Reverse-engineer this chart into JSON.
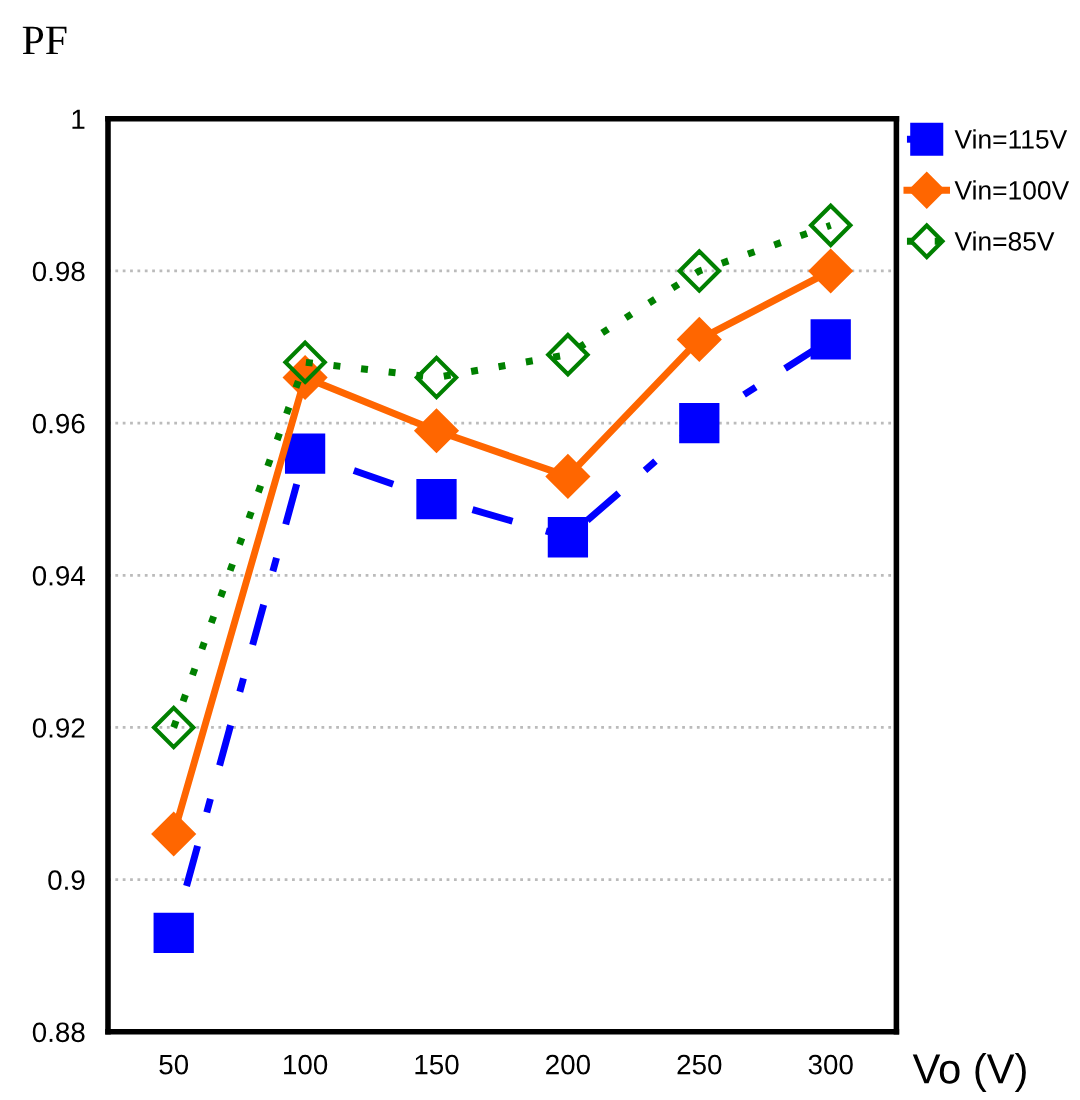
{
  "chart_data": {
    "type": "line",
    "xlabel": "Vo (V)",
    "ylabel": "PF",
    "categories": [
      "50",
      "100",
      "150",
      "200",
      "250",
      "300"
    ],
    "series": [
      {
        "name": "Vin=115V",
        "color": "#0000ff",
        "marker": "square",
        "line_style": "dashed",
        "values": [
          0.893,
          0.956,
          0.95,
          0.945,
          0.96,
          0.971
        ]
      },
      {
        "name": "Vin=100V",
        "color": "#ff6600",
        "marker": "diamond",
        "line_style": "solid",
        "values": [
          0.906,
          0.966,
          0.959,
          0.953,
          0.971,
          0.98
        ]
      },
      {
        "name": "Vin=85V",
        "color": "#008000",
        "marker": "diamond",
        "line_style": "dotted",
        "values": [
          0.92,
          0.968,
          0.966,
          0.969,
          0.98,
          0.986
        ]
      }
    ],
    "ylim": [
      0.88,
      1
    ],
    "yticks": [
      0.88,
      0.9,
      0.92,
      0.94,
      0.96,
      0.98,
      1
    ],
    "grid": "y",
    "legend": "top right"
  }
}
